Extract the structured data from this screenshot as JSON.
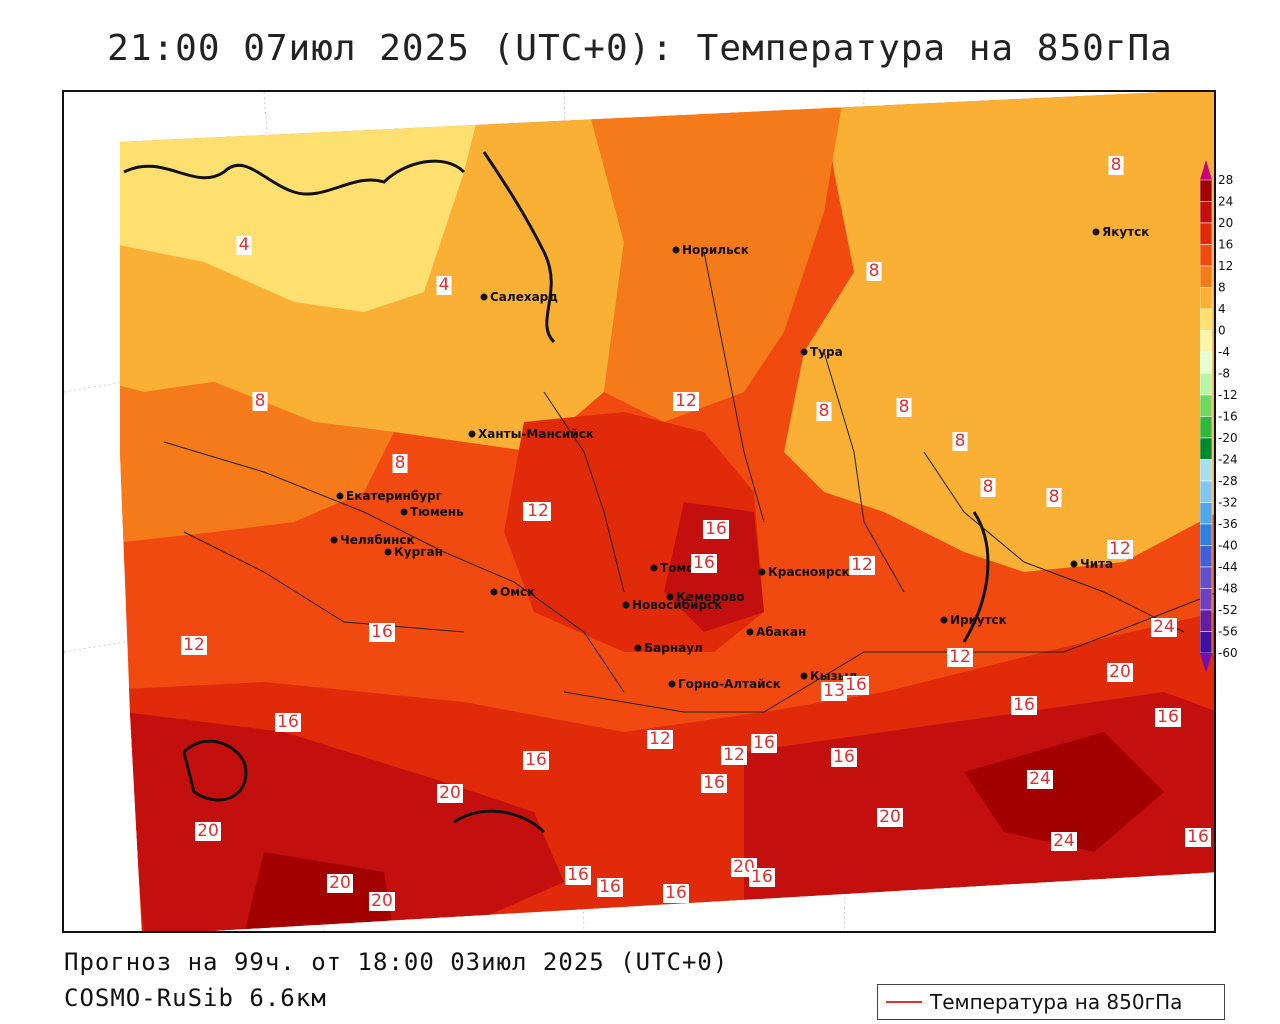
{
  "title": "21:00 07июл 2025 (UTC+0): Температура на 850гПа",
  "footer": {
    "forecast": "Прогноз на 99ч. от 18:00 03июл 2025 (UTC+0)",
    "model": "COSMO-RuSib 6.6км"
  },
  "legend": {
    "label": "Температура на 850гПа",
    "line_color": "#e83030"
  },
  "colorbar": {
    "ticks": [
      "28",
      "24",
      "20",
      "16",
      "12",
      "8",
      "4",
      "0",
      "-4",
      "-8",
      "-12",
      "-16",
      "-20",
      "-24",
      "-28",
      "-32",
      "-36",
      "-40",
      "-44",
      "-48",
      "-52",
      "-56",
      "-60"
    ],
    "colors": [
      "#c8007a",
      "#a30000",
      "#c40f0f",
      "#e02a0a",
      "#f04a10",
      "#f57a1a",
      "#f9b035",
      "#fde070",
      "#fff5a8",
      "#e5ffd0",
      "#b8f5a8",
      "#70d860",
      "#30b840",
      "#008a30",
      "#a8e0f0",
      "#80c8f0",
      "#50a8e8",
      "#3080e0",
      "#4060d8",
      "#6050c8",
      "#7040c0",
      "#6020a0",
      "#4010a0",
      "#7010b0"
    ]
  },
  "cities": [
    {
      "name": "Норильск"
    },
    {
      "name": "Якутск"
    },
    {
      "name": "Салехард"
    },
    {
      "name": "Тура"
    },
    {
      "name": "Ханты-Мансийск"
    },
    {
      "name": "Екатеринбург"
    },
    {
      "name": "Тюмень"
    },
    {
      "name": "Челябинск"
    },
    {
      "name": "Курган"
    },
    {
      "name": "Омск"
    },
    {
      "name": "Новосибирск"
    },
    {
      "name": "Томск"
    },
    {
      "name": "Кемерово"
    },
    {
      "name": "Красноярск"
    },
    {
      "name": "Абакан"
    },
    {
      "name": "Барнаул"
    },
    {
      "name": "Горно-Алтайск"
    },
    {
      "name": "Кызыл"
    },
    {
      "name": "Иркутск"
    },
    {
      "name": "Чита"
    }
  ],
  "isotherm_labels": [
    "8",
    "4",
    "4",
    "8",
    "8",
    "12",
    "8",
    "12",
    "8",
    "8",
    "8",
    "8",
    "8",
    "16",
    "16",
    "12",
    "12",
    "12",
    "12",
    "16",
    "20",
    "16",
    "16",
    "12",
    "16",
    "16",
    "16",
    "20",
    "20",
    "20",
    "16",
    "24",
    "24",
    "20",
    "20",
    "24",
    "20",
    "16",
    "16",
    "16",
    "16",
    "12",
    "16",
    "12",
    "16",
    "13",
    "16"
  ]
}
